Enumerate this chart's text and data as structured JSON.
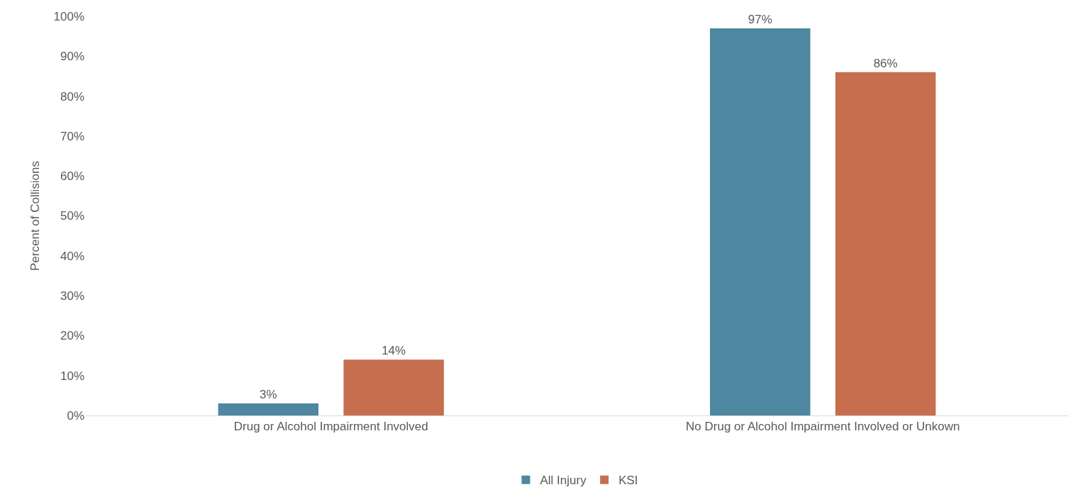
{
  "chart_data": {
    "type": "bar",
    "ylabel": "Percent of Collisions",
    "categories": [
      "Drug or Alcohol Impairment Involved",
      "No Drug or Alcohol Impairment Involved or Unkown"
    ],
    "series": [
      {
        "name": "All Injury",
        "color": "#4e87a0",
        "values": [
          3,
          97
        ],
        "value_labels": [
          "3%",
          "97%"
        ]
      },
      {
        "name": "KSI",
        "color": "#c66e4e",
        "values": [
          14,
          86
        ],
        "value_labels": [
          "14%",
          "86%"
        ]
      }
    ],
    "ylim": [
      0,
      100
    ],
    "yticks": [
      {
        "value": 0,
        "label": "0%"
      },
      {
        "value": 10,
        "label": "10%"
      },
      {
        "value": 20,
        "label": "20%"
      },
      {
        "value": 30,
        "label": "30%"
      },
      {
        "value": 40,
        "label": "40%"
      },
      {
        "value": 50,
        "label": "50%"
      },
      {
        "value": 60,
        "label": "60%"
      },
      {
        "value": 70,
        "label": "70%"
      },
      {
        "value": 80,
        "label": "80%"
      },
      {
        "value": 90,
        "label": "90%"
      },
      {
        "value": 100,
        "label": "100%"
      }
    ],
    "grid": false,
    "legend": "bottom"
  }
}
